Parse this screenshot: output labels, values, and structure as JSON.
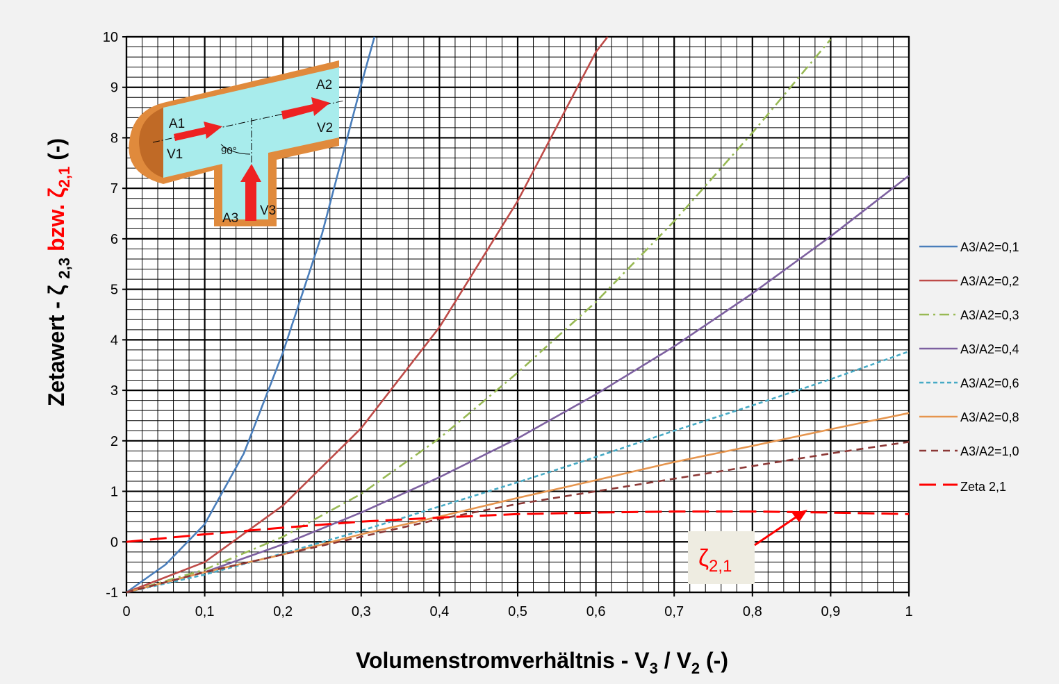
{
  "chart_data": {
    "type": "line",
    "x_label": {
      "text": "Volumenstromverhältnis - V",
      "sub1": "3",
      "mid": " / V",
      "sub2": "2",
      "suffix": " (-)"
    },
    "y_label": {
      "text": "Zetawert - ζ ",
      "sub1": "2,3",
      "mid": " bzw. ζ",
      "sub2": "2,1",
      "suffix": " (-)"
    },
    "xlim": [
      0,
      1
    ],
    "ylim": [
      -1,
      10
    ],
    "xticks": [
      0,
      {
        "value": 0.1,
        "label": "0,1"
      },
      {
        "value": 0.2,
        "label": "0,2"
      },
      {
        "value": 0.3,
        "label": "0,3"
      },
      {
        "value": 0.4,
        "label": "0,4"
      },
      {
        "value": 0.5,
        "label": "0,5"
      },
      {
        "value": 0.6,
        "label": "0,6"
      },
      {
        "value": 0.7,
        "label": "0,7"
      },
      {
        "value": 0.8,
        "label": "0,8"
      },
      {
        "value": 0.9,
        "label": "0,9"
      },
      1
    ],
    "yticks": [
      -1,
      0,
      1,
      2,
      3,
      4,
      5,
      6,
      7,
      8,
      9,
      10
    ],
    "grid": true,
    "series": [
      {
        "name": "A3/A2=0,1",
        "color": "#4a7ebb",
        "dash": "solid",
        "x": [
          0,
          0.05,
          0.1,
          0.15,
          0.2,
          0.25,
          0.3,
          0.317
        ],
        "values": [
          -1,
          -0.45,
          0.35,
          1.75,
          3.75,
          6.1,
          9.05,
          10
        ]
      },
      {
        "name": "A3/A2=0,2",
        "color": "#be4b48",
        "dash": "solid",
        "x": [
          0,
          0.1,
          0.2,
          0.3,
          0.4,
          0.5,
          0.6,
          0.615
        ],
        "values": [
          -1,
          -0.4,
          0.72,
          2.25,
          4.25,
          6.75,
          9.7,
          10
        ]
      },
      {
        "name": "A3/A2=0,3",
        "color": "#98b954",
        "dash": "dashdot",
        "x": [
          0,
          0.1,
          0.2,
          0.3,
          0.4,
          0.5,
          0.6,
          0.7,
          0.8,
          0.9
        ],
        "values": [
          -1,
          -0.55,
          0.1,
          0.95,
          2.05,
          3.35,
          4.75,
          6.35,
          8.1,
          9.95
        ]
      },
      {
        "name": "A3/A2=0,4",
        "color": "#7d60a0",
        "dash": "solid",
        "x": [
          0,
          0.1,
          0.2,
          0.3,
          0.4,
          0.5,
          0.6,
          0.7,
          0.8,
          0.9,
          1
        ],
        "values": [
          -1,
          -0.6,
          -0.05,
          0.58,
          1.28,
          2.05,
          2.92,
          3.87,
          4.92,
          6.05,
          7.25
        ]
      },
      {
        "name": "A3/A2=0,6",
        "color": "#46aac5",
        "dash": "dot",
        "x": [
          0,
          0.1,
          0.2,
          0.3,
          0.4,
          0.5,
          0.6,
          0.7,
          0.8,
          0.9,
          1
        ],
        "values": [
          -1,
          -0.65,
          -0.23,
          0.22,
          0.7,
          1.18,
          1.68,
          2.2,
          2.7,
          3.22,
          3.77
        ]
      },
      {
        "name": "A3/A2=0,8",
        "color": "#e6954e",
        "dash": "solid",
        "x": [
          0,
          0.1,
          0.2,
          0.3,
          0.4,
          0.5,
          0.6,
          0.7,
          0.8,
          0.9,
          1
        ],
        "values": [
          -1,
          -0.6,
          -0.25,
          0.15,
          0.5,
          0.87,
          1.22,
          1.58,
          1.9,
          2.23,
          2.55
        ]
      },
      {
        "name": "A3/A2=1,0",
        "color": "#8c3836",
        "dash": "dash",
        "x": [
          0,
          0.1,
          0.2,
          0.3,
          0.4,
          0.5,
          0.6,
          0.7,
          0.8,
          0.9,
          1
        ],
        "values": [
          -1,
          -0.6,
          -0.25,
          0.1,
          0.45,
          0.75,
          1.0,
          1.25,
          1.5,
          1.75,
          1.98
        ]
      },
      {
        "name": "Zeta 2,1",
        "color": "#ff0000",
        "dash": "longdash",
        "x": [
          0,
          0.1,
          0.2,
          0.3,
          0.4,
          0.5,
          0.6,
          0.7,
          0.8,
          0.9,
          1
        ],
        "values": [
          0,
          0.15,
          0.28,
          0.4,
          0.48,
          0.55,
          0.58,
          0.6,
          0.6,
          0.58,
          0.55
        ]
      }
    ],
    "annotation": {
      "text": "ζ",
      "sub": "2,1"
    },
    "inset": {
      "a1": "A1",
      "v1": "V1",
      "a2": "A2",
      "v2": "V2",
      "a3": "A3",
      "v3": "V3",
      "angle": "90°"
    }
  }
}
